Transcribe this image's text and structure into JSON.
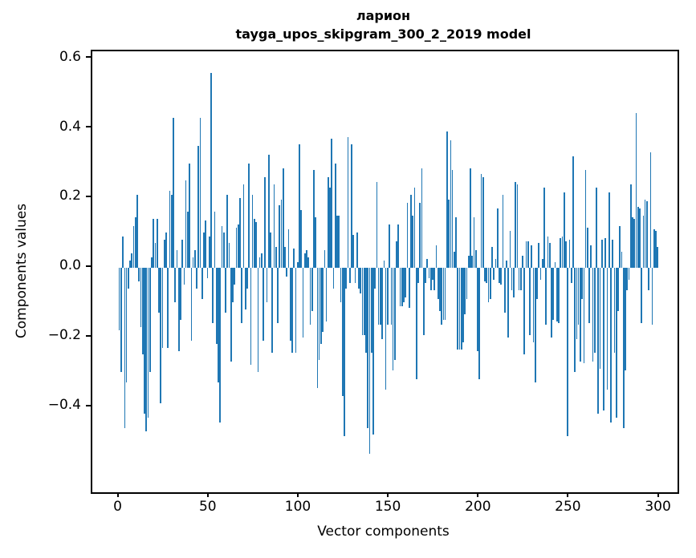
{
  "title": {
    "word": "ларион",
    "model_line": "tayga_upos_skipgram_300_2_2019 model"
  },
  "axes": {
    "xlabel": "Vector components",
    "ylabel": "Components values"
  },
  "colors": {
    "bar": "#1f77b4",
    "text": "#000000",
    "background": "#ffffff"
  },
  "chart_data": {
    "type": "bar",
    "title": "ларион",
    "subtitle": "tayga_upos_skipgram_300_2_2019 model",
    "xlabel": "Vector components",
    "ylabel": "Components values",
    "xlim": [
      -15,
      310
    ],
    "ylim": [
      -0.645,
      0.621
    ],
    "x_ticks": [
      0,
      50,
      100,
      150,
      200,
      250,
      300
    ],
    "y_ticks": [
      0.6,
      0.4,
      0.2,
      0.0,
      -0.2,
      -0.4
    ],
    "grid": false,
    "legend": null,
    "bar_color": "#1f77b4",
    "n_components": 300,
    "values": [
      -0.18,
      -0.3,
      0.09,
      -0.46,
      -0.33,
      -0.06,
      0.02,
      0.04,
      0.12,
      0.145,
      0.21,
      -0.04,
      -0.17,
      -0.25,
      -0.42,
      -0.47,
      -0.43,
      -0.3,
      0.03,
      0.14,
      0.07,
      0.14,
      -0.13,
      -0.39,
      -0.23,
      0.08,
      0.1,
      -0.23,
      0.22,
      0.21,
      0.43,
      -0.1,
      0.05,
      -0.24,
      -0.15,
      0.08,
      -0.05,
      0.25,
      0.16,
      0.3,
      -0.21,
      0.03,
      0.05,
      -0.06,
      0.35,
      0.43,
      -0.09,
      0.1,
      0.135,
      -0.03,
      0.09,
      0.56,
      -0.16,
      0.16,
      -0.22,
      -0.33,
      -0.445,
      0.12,
      0.1,
      -0.13,
      0.21,
      0.07,
      -0.27,
      -0.1,
      -0.05,
      0.115,
      0.125,
      0.2,
      -0.16,
      0.24,
      -0.12,
      -0.06,
      0.3,
      -0.28,
      0.21,
      0.14,
      0.13,
      -0.3,
      0.03,
      0.04,
      -0.21,
      0.26,
      -0.1,
      0.325,
      0.1,
      -0.245,
      0.24,
      0.06,
      -0.16,
      0.18,
      0.195,
      0.285,
      0.06,
      -0.025,
      0.11,
      -0.21,
      -0.245,
      0.055,
      -0.245,
      0.015,
      0.355,
      0.165,
      -0.2,
      0.04,
      0.05,
      0.03,
      -0.165,
      -0.125,
      0.28,
      0.145,
      -0.345,
      -0.265,
      -0.22,
      -0.185,
      0.05,
      -0.155,
      0.26,
      0.23,
      0.37,
      -0.06,
      0.3,
      0.15,
      0.15,
      -0.1,
      -0.37,
      -0.485,
      -0.06,
      0.375,
      -0.045,
      0.355,
      0.095,
      -0.045,
      0.1,
      -0.06,
      -0.075,
      -0.195,
      -0.195,
      -0.245,
      -0.46,
      -0.535,
      -0.245,
      -0.48,
      -0.06,
      0.245,
      -0.165,
      -0.165,
      -0.205,
      0.02,
      -0.35,
      -0.165,
      0.125,
      -0.165,
      -0.295,
      -0.265,
      0.075,
      0.125,
      -0.11,
      -0.11,
      -0.1,
      -0.085,
      0.185,
      -0.115,
      0.21,
      0.15,
      0.23,
      -0.32,
      -0.045,
      0.185,
      0.285,
      -0.195,
      -0.045,
      0.025,
      -0.03,
      -0.065,
      -0.035,
      -0.065,
      0.065,
      -0.09,
      -0.125,
      -0.165,
      -0.15,
      -0.15,
      0.39,
      0.195,
      0.365,
      0.28,
      0.045,
      0.145,
      -0.235,
      -0.235,
      -0.235,
      -0.215,
      -0.135,
      -0.09,
      0.035,
      0.285,
      0.035,
      0.145,
      0.05,
      -0.24,
      -0.32,
      0.27,
      0.26,
      -0.04,
      -0.045,
      -0.1,
      -0.09,
      0.06,
      -0.035,
      0.025,
      0.17,
      -0.045,
      -0.05,
      0.21,
      -0.13,
      0.02,
      -0.2,
      0.105,
      -0.065,
      -0.085,
      0.245,
      0.24,
      -0.065,
      -0.065,
      0.035,
      -0.25,
      0.075,
      0.075,
      -0.195,
      0.065,
      -0.215,
      -0.33,
      -0.09,
      0.07,
      -0.035,
      0.025,
      0.23,
      -0.165,
      0.09,
      0.07,
      -0.2,
      -0.15,
      0.015,
      -0.155,
      -0.16,
      0.085,
      0.09,
      0.215,
      0.075,
      -0.485,
      0.08,
      -0.045,
      0.32,
      -0.3,
      -0.205,
      -0.165,
      -0.27,
      -0.09,
      -0.275,
      0.28,
      0.115,
      -0.16,
      0.065,
      -0.27,
      -0.245,
      0.23,
      -0.42,
      -0.29,
      0.08,
      -0.41,
      0.085,
      -0.35,
      0.215,
      -0.445,
      0.08,
      -0.245,
      -0.43,
      -0.125,
      0.12,
      0.045,
      -0.46,
      -0.295,
      -0.065,
      -0.035,
      0.24,
      0.145,
      0.14,
      0.445,
      0.175,
      0.17,
      -0.16,
      0.15,
      0.195,
      0.19,
      -0.065,
      0.33,
      -0.165,
      0.11,
      0.105,
      0.06
    ]
  }
}
